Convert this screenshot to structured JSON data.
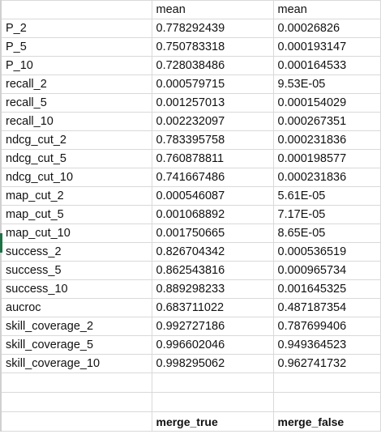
{
  "sheet": {
    "header": [
      "",
      "mean",
      "mean"
    ],
    "rows": [
      [
        "P_2",
        "0.778292439",
        "0.00026826"
      ],
      [
        "P_5",
        "0.750783318",
        "0.000193147"
      ],
      [
        "P_10",
        "0.728038486",
        "0.000164533"
      ],
      [
        "recall_2",
        "0.000579715",
        "9.53E-05"
      ],
      [
        "recall_5",
        "0.001257013",
        "0.000154029"
      ],
      [
        "recall_10",
        "0.002232097",
        "0.000267351"
      ],
      [
        "ndcg_cut_2",
        "0.783395758",
        "0.000231836"
      ],
      [
        "ndcg_cut_5",
        "0.760878811",
        "0.000198577"
      ],
      [
        "ndcg_cut_10",
        "0.741667486",
        "0.000231836"
      ],
      [
        "map_cut_2",
        "0.000546087",
        "5.61E-05"
      ],
      [
        "map_cut_5",
        "0.001068892",
        "7.17E-05"
      ],
      [
        "map_cut_10",
        "0.001750665",
        "8.65E-05"
      ],
      [
        "success_2",
        "0.826704342",
        "0.000536519"
      ],
      [
        "success_5",
        "0.862543816",
        "0.000965734"
      ],
      [
        "success_10",
        "0.889298233",
        "0.001645325"
      ],
      [
        "aucroc",
        "0.683711022",
        "0.487187354"
      ],
      [
        "skill_coverage_2",
        "0.992727186",
        "0.787699406"
      ],
      [
        "skill_coverage_5",
        "0.996602046",
        "0.949364523"
      ],
      [
        "skill_coverage_10",
        "0.998295062",
        "0.962741732"
      ]
    ],
    "footer": [
      "",
      "merge_true",
      "merge_false"
    ]
  }
}
